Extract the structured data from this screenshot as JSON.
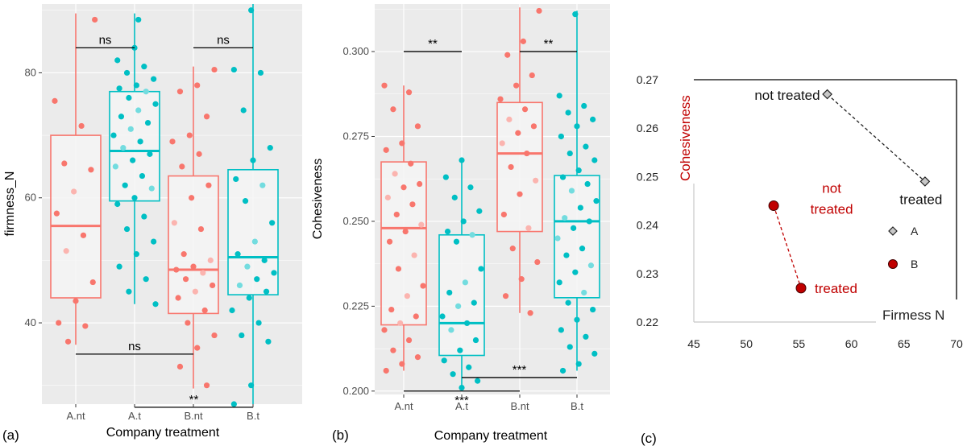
{
  "chart_data": [
    {
      "type": "boxplot",
      "panel": "(a)",
      "xlabel": "Company treatment",
      "ylabel": "firmness_N",
      "ylim": [
        27,
        91
      ],
      "yticks": [
        40,
        60,
        80
      ],
      "categories": [
        "A.nt",
        "A.t",
        "B.nt",
        "B.t"
      ],
      "colors": [
        "#F8766D",
        "#00BFC4",
        "#F8766D",
        "#00BFC4"
      ],
      "boxes": [
        {
          "name": "A.nt",
          "q1": 44,
          "median": 55.5,
          "q3": 70,
          "low": 36.5,
          "high": 89.5
        },
        {
          "name": "A.t",
          "q1": 59.5,
          "median": 67.5,
          "q3": 77,
          "low": 43,
          "high": 89.5
        },
        {
          "name": "B.nt",
          "q1": 41.5,
          "median": 48.5,
          "q3": 63.5,
          "low": 29.5,
          "high": 81
        },
        {
          "name": "B.t",
          "q1": 44.5,
          "median": 50.5,
          "q3": 64.5,
          "low": 27,
          "high": 91
        }
      ],
      "points": [
        [
          75.5,
          71.5,
          65.5,
          64.5,
          61,
          57.5,
          54,
          51.5,
          46.5,
          43.5,
          40,
          39.5,
          37,
          88.5
        ],
        [
          84,
          82,
          81,
          80,
          79,
          78,
          77.5,
          77,
          76,
          75,
          74,
          73,
          72,
          71,
          70,
          69,
          68,
          67,
          66,
          65,
          63.5,
          62,
          61.5,
          60,
          59,
          57,
          55,
          53,
          51,
          49,
          47,
          45,
          43,
          88.5
        ],
        [
          80.5,
          78,
          77,
          73,
          70,
          69,
          67,
          65,
          62,
          60,
          56,
          55,
          51,
          50,
          49,
          48.5,
          48,
          47,
          46,
          45,
          44,
          42,
          40,
          38,
          36,
          33,
          30
        ],
        [
          90,
          80.5,
          80,
          74,
          68,
          66,
          63,
          62,
          59.5,
          56,
          53,
          51,
          50,
          49,
          48,
          47,
          46,
          45,
          44,
          42,
          40,
          38,
          37,
          30,
          27
        ]
      ],
      "annotations": [
        {
          "label": "ns",
          "from": "A.nt",
          "to": "A.t",
          "y": 84
        },
        {
          "label": "ns",
          "from": "B.nt",
          "to": "B.t",
          "y": 84
        },
        {
          "label": "ns",
          "from": "A.nt",
          "to": "B.nt",
          "y": 35
        },
        {
          "label": "**",
          "from": "A.t",
          "to": "B.t",
          "y": 26.5
        }
      ]
    },
    {
      "type": "boxplot",
      "panel": "(b)",
      "xlabel": "Company treatment",
      "ylabel": "Cohesiveness",
      "ylim": [
        0.199,
        0.314
      ],
      "yticks": [
        "0.200",
        "0.225",
        "0.250",
        "0.275",
        "0.300"
      ],
      "categories": [
        "A.nt",
        "A.t",
        "B.nt",
        "B.t"
      ],
      "colors": [
        "#F8766D",
        "#00BFC4",
        "#F8766D",
        "#00BFC4"
      ],
      "boxes": [
        {
          "name": "A.nt",
          "q1": 0.2195,
          "median": 0.248,
          "q3": 0.2675,
          "low": 0.206,
          "high": 0.29
        },
        {
          "name": "A.t",
          "q1": 0.2105,
          "median": 0.22,
          "q3": 0.246,
          "low": 0.201,
          "high": 0.268
        },
        {
          "name": "B.nt",
          "q1": 0.247,
          "median": 0.27,
          "q3": 0.285,
          "low": 0.223,
          "high": 0.313
        },
        {
          "name": "B.t",
          "q1": 0.2275,
          "median": 0.25,
          "q3": 0.2635,
          "low": 0.206,
          "high": 0.312
        }
      ],
      "points": [
        [
          0.29,
          0.288,
          0.283,
          0.278,
          0.273,
          0.271,
          0.267,
          0.264,
          0.261,
          0.26,
          0.257,
          0.255,
          0.252,
          0.249,
          0.247,
          0.244,
          0.24,
          0.236,
          0.231,
          0.228,
          0.224,
          0.222,
          0.22,
          0.218,
          0.215,
          0.212,
          0.21,
          0.208,
          0.206
        ],
        [
          0.268,
          0.263,
          0.26,
          0.257,
          0.253,
          0.25,
          0.247,
          0.246,
          0.244,
          0.236,
          0.232,
          0.229,
          0.226,
          0.225,
          0.222,
          0.22,
          0.218,
          0.215,
          0.212,
          0.209,
          0.207,
          0.205,
          0.203,
          0.201
        ],
        [
          0.312,
          0.303,
          0.299,
          0.293,
          0.29,
          0.286,
          0.283,
          0.28,
          0.278,
          0.276,
          0.273,
          0.27,
          0.266,
          0.262,
          0.258,
          0.252,
          0.248,
          0.242,
          0.238,
          0.233,
          0.228,
          0.223
        ],
        [
          0.311,
          0.287,
          0.284,
          0.282,
          0.28,
          0.278,
          0.275,
          0.272,
          0.27,
          0.268,
          0.265,
          0.263,
          0.261,
          0.259,
          0.256,
          0.254,
          0.251,
          0.25,
          0.248,
          0.245,
          0.242,
          0.24,
          0.237,
          0.235,
          0.232,
          0.229,
          0.226,
          0.224,
          0.221,
          0.218,
          0.216,
          0.213,
          0.211,
          0.208,
          0.206
        ]
      ],
      "annotations": [
        {
          "label": "**",
          "from": "A.nt",
          "to": "A.t",
          "y": 0.3
        },
        {
          "label": "**",
          "from": "B.nt",
          "to": "B.t",
          "y": 0.3
        },
        {
          "label": "***",
          "from": "A.t",
          "to": "B.t",
          "y": 0.204
        },
        {
          "label": "***",
          "from": "A.nt",
          "to": "B.nt",
          "y": 0.2
        }
      ]
    },
    {
      "type": "scatter",
      "panel": "(c)",
      "xlabel": "Firmess N",
      "ylabel": "Cohesiveness",
      "xlim": [
        45,
        70
      ],
      "ylim": [
        0.22,
        0.27
      ],
      "xticks": [
        45,
        50,
        55,
        60,
        65,
        70
      ],
      "yticks": [
        "0.22",
        "0.23",
        "0.24",
        "0.25",
        "0.26",
        "0.27"
      ],
      "series": [
        {
          "name": "A",
          "color": "#8c8c8c",
          "marker": "diamond",
          "points": [
            {
              "x": 57.7,
              "y": 0.267,
              "label": "not treated"
            },
            {
              "x": 67.0,
              "y": 0.249,
              "label": "treated"
            }
          ]
        },
        {
          "name": "B",
          "color": "#c00000",
          "marker": "circle",
          "points": [
            {
              "x": 52.6,
              "y": 0.244,
              "label": "not treated"
            },
            {
              "x": 55.2,
              "y": 0.227,
              "label": "treated"
            }
          ]
        }
      ],
      "legend": [
        {
          "label": "A"
        },
        {
          "label": "B"
        }
      ]
    }
  ]
}
